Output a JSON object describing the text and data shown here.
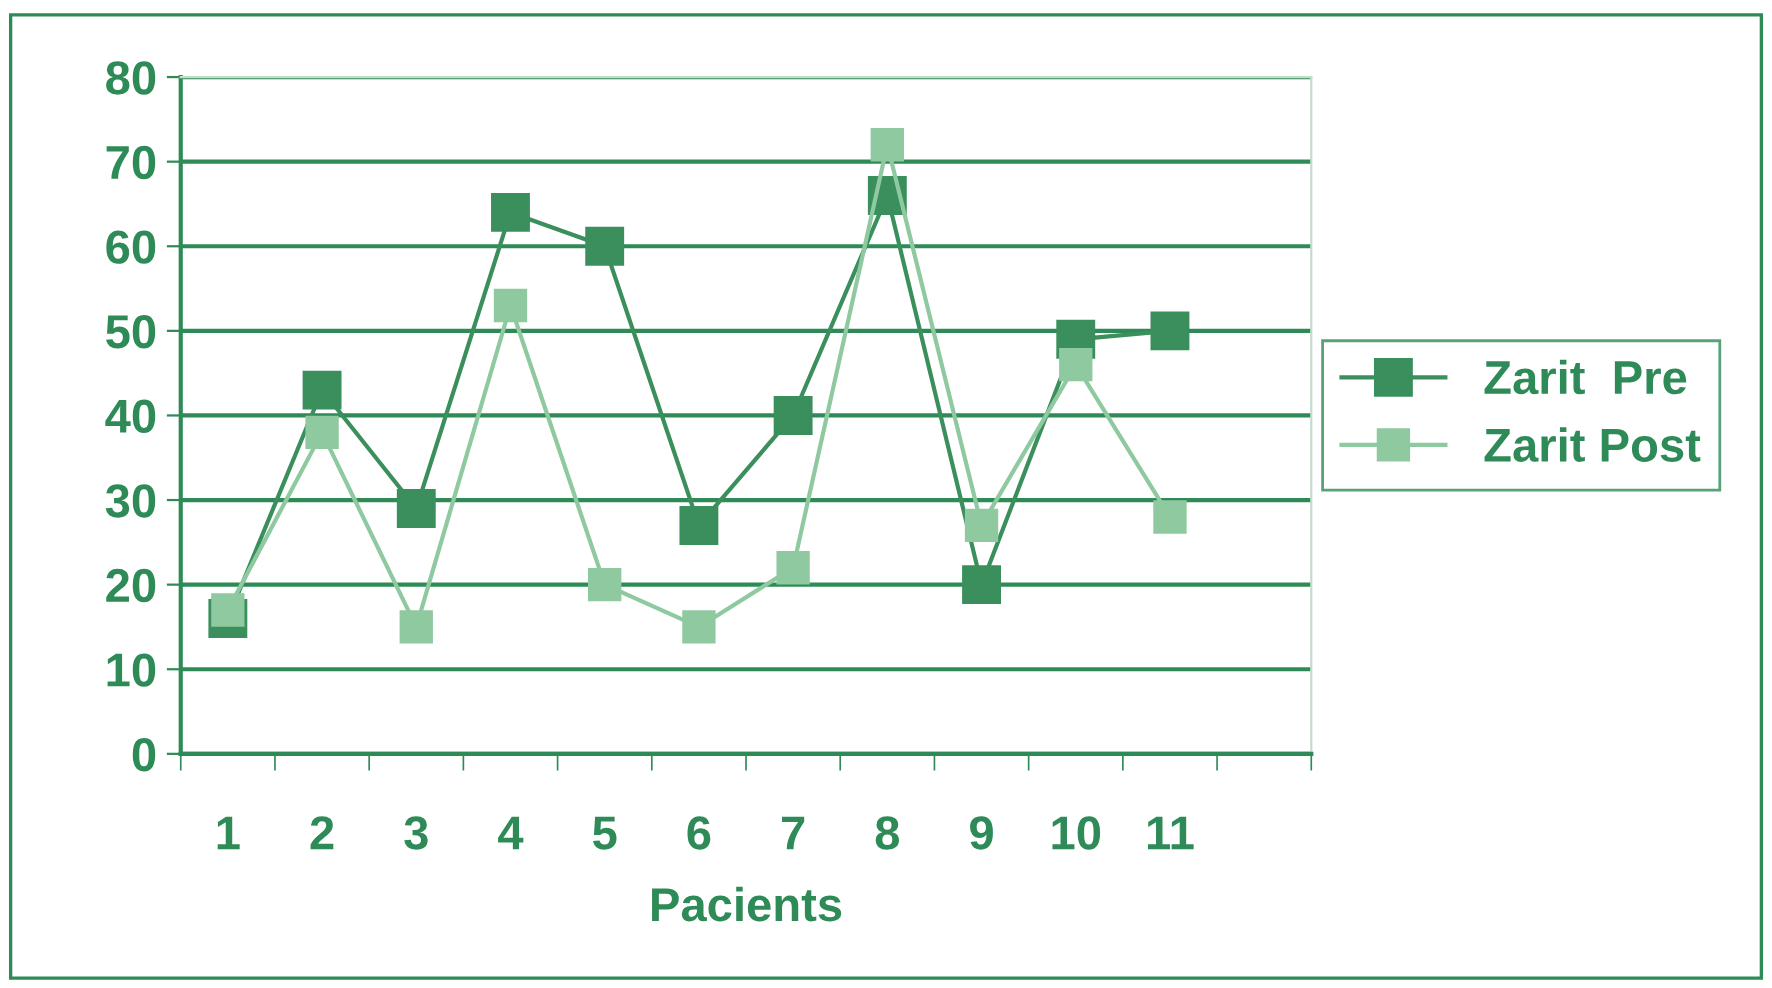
{
  "chart_data": {
    "type": "line",
    "xlabel": "Pacients",
    "categories": [
      "1",
      "2",
      "3",
      "4",
      "5",
      "6",
      "7",
      "8",
      "9",
      "10",
      "11",
      null
    ],
    "series": [
      {
        "name": "Zarit  Pre",
        "color": "#3a8f5c",
        "values": [
          16,
          43,
          29,
          64,
          60,
          27,
          40,
          66,
          20,
          49,
          50,
          null
        ]
      },
      {
        "name": "Zarit Post",
        "color": "#8fc9a0",
        "values": [
          17,
          38,
          15,
          53,
          20,
          15,
          22,
          72,
          27,
          46,
          28,
          null
        ]
      }
    ],
    "ylim": [
      0,
      80
    ],
    "yticks": [
      0,
      10,
      20,
      30,
      40,
      50,
      60,
      70,
      80
    ],
    "grid": "y",
    "legend": "right",
    "marker": "square",
    "line_style": "solid"
  }
}
